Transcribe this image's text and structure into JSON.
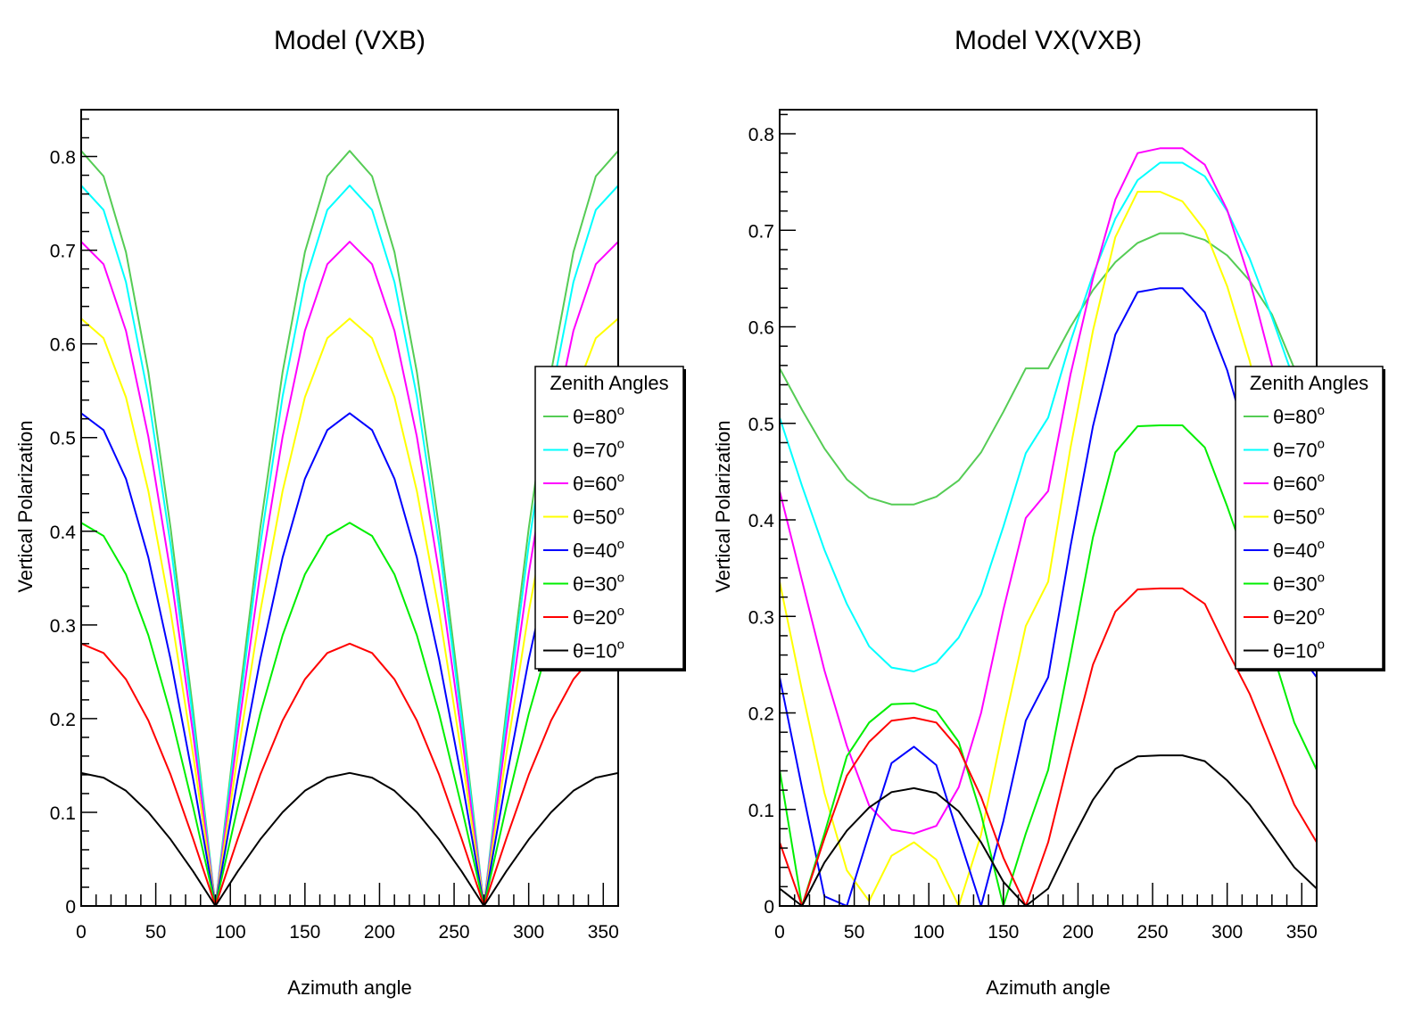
{
  "chart_data": [
    {
      "type": "line",
      "title": "Model (VXB)",
      "xlabel": "Azimuth angle",
      "ylabel": "Vertical Polarization",
      "xlim": [
        0,
        360
      ],
      "ylim": [
        0,
        0.85
      ],
      "xticks": [
        "0",
        "50",
        "100",
        "150",
        "200",
        "250",
        "300",
        "350"
      ],
      "yticks": [
        "0",
        "0.1",
        "0.2",
        "0.3",
        "0.4",
        "0.5",
        "0.6",
        "0.7",
        "0.8"
      ],
      "legend_position": "right",
      "legend_title": "Zenith Angles",
      "x": [
        0,
        15,
        30,
        45,
        60,
        75,
        90,
        105,
        120,
        135,
        150,
        165,
        180,
        195,
        210,
        225,
        240,
        255,
        270,
        285,
        300,
        315,
        330,
        345,
        360
      ],
      "series": [
        {
          "name": "θ=80",
          "color": "#55cc55",
          "values": [
            0.806,
            0.779,
            0.698,
            0.57,
            0.403,
            0.209,
            0.0,
            0.209,
            0.403,
            0.57,
            0.698,
            0.779,
            0.806,
            0.779,
            0.698,
            0.57,
            0.403,
            0.209,
            0.0,
            0.209,
            0.403,
            0.57,
            0.698,
            0.779,
            0.806
          ]
        },
        {
          "name": "θ=70",
          "color": "#00ffff",
          "values": [
            0.769,
            0.743,
            0.666,
            0.544,
            0.385,
            0.199,
            0.0,
            0.199,
            0.385,
            0.544,
            0.666,
            0.743,
            0.769,
            0.743,
            0.666,
            0.544,
            0.385,
            0.199,
            0.0,
            0.199,
            0.385,
            0.544,
            0.666,
            0.743,
            0.769
          ]
        },
        {
          "name": "θ=60",
          "color": "#ff00ff",
          "values": [
            0.709,
            0.685,
            0.614,
            0.501,
            0.355,
            0.184,
            0.0,
            0.184,
            0.355,
            0.501,
            0.614,
            0.685,
            0.709,
            0.685,
            0.614,
            0.501,
            0.355,
            0.184,
            0.0,
            0.184,
            0.355,
            0.501,
            0.614,
            0.685,
            0.709
          ]
        },
        {
          "name": "θ=50",
          "color": "#ffff00",
          "values": [
            0.627,
            0.606,
            0.543,
            0.443,
            0.314,
            0.162,
            0.0,
            0.162,
            0.314,
            0.443,
            0.543,
            0.606,
            0.627,
            0.606,
            0.543,
            0.443,
            0.314,
            0.162,
            0.0,
            0.162,
            0.314,
            0.443,
            0.543,
            0.606,
            0.627
          ]
        },
        {
          "name": "θ=40",
          "color": "#0000ff",
          "values": [
            0.526,
            0.508,
            0.456,
            0.372,
            0.263,
            0.136,
            0.0,
            0.136,
            0.263,
            0.372,
            0.456,
            0.508,
            0.526,
            0.508,
            0.456,
            0.372,
            0.263,
            0.136,
            0.0,
            0.136,
            0.263,
            0.372,
            0.456,
            0.508,
            0.526
          ]
        },
        {
          "name": "θ=30",
          "color": "#00ee00",
          "values": [
            0.409,
            0.395,
            0.354,
            0.289,
            0.205,
            0.106,
            0.0,
            0.106,
            0.205,
            0.289,
            0.354,
            0.395,
            0.409,
            0.395,
            0.354,
            0.289,
            0.205,
            0.106,
            0.0,
            0.106,
            0.205,
            0.289,
            0.354,
            0.395,
            0.409
          ]
        },
        {
          "name": "θ=20",
          "color": "#ff0000",
          "values": [
            0.28,
            0.27,
            0.242,
            0.198,
            0.14,
            0.072,
            0.0,
            0.072,
            0.14,
            0.198,
            0.242,
            0.27,
            0.28,
            0.27,
            0.242,
            0.198,
            0.14,
            0.072,
            0.0,
            0.072,
            0.14,
            0.198,
            0.242,
            0.27,
            0.28
          ]
        },
        {
          "name": "θ=10",
          "color": "#000000",
          "values": [
            0.142,
            0.137,
            0.123,
            0.1,
            0.071,
            0.037,
            0.0,
            0.037,
            0.071,
            0.1,
            0.123,
            0.137,
            0.142,
            0.137,
            0.123,
            0.1,
            0.071,
            0.037,
            0.0,
            0.037,
            0.071,
            0.1,
            0.123,
            0.137,
            0.142
          ]
        }
      ]
    },
    {
      "type": "line",
      "title": "Model VX(VXB)",
      "xlabel": "Azimuth angle",
      "ylabel": "Vertical Polarization",
      "xlim": [
        0,
        360
      ],
      "ylim": [
        0,
        0.825
      ],
      "xticks": [
        "0",
        "50",
        "100",
        "150",
        "200",
        "250",
        "300",
        "350"
      ],
      "yticks": [
        "0",
        "0.1",
        "0.2",
        "0.3",
        "0.4",
        "0.5",
        "0.6",
        "0.7",
        "0.8"
      ],
      "legend_position": "right",
      "legend_title": "Zenith Angles",
      "x": [
        0,
        15,
        30,
        45,
        60,
        75,
        90,
        105,
        120,
        135,
        150,
        165,
        180,
        195,
        210,
        225,
        240,
        255,
        270,
        285,
        300,
        315,
        330,
        345,
        360
      ],
      "series": [
        {
          "name": "θ=80",
          "color": "#55cc55",
          "values": [
            0.557,
            0.514,
            0.474,
            0.442,
            0.423,
            0.416,
            0.416,
            0.424,
            0.441,
            0.47,
            0.512,
            0.557,
            0.557,
            0.6,
            0.638,
            0.667,
            0.687,
            0.697,
            0.697,
            0.69,
            0.674,
            0.648,
            0.613,
            0.557,
            0.557
          ]
        },
        {
          "name": "θ=70",
          "color": "#00ffff",
          "values": [
            0.506,
            0.435,
            0.369,
            0.313,
            0.269,
            0.247,
            0.243,
            0.252,
            0.278,
            0.323,
            0.393,
            0.469,
            0.506,
            0.585,
            0.654,
            0.712,
            0.752,
            0.77,
            0.77,
            0.756,
            0.72,
            0.671,
            0.61,
            0.544,
            0.506
          ]
        },
        {
          "name": "θ=60",
          "color": "#ff00ff",
          "values": [
            0.43,
            0.337,
            0.244,
            0.166,
            0.104,
            0.079,
            0.075,
            0.083,
            0.123,
            0.2,
            0.307,
            0.402,
            0.43,
            0.551,
            0.65,
            0.732,
            0.78,
            0.785,
            0.785,
            0.768,
            0.721,
            0.649,
            0.56,
            0.474,
            0.43
          ]
        },
        {
          "name": "θ=50",
          "color": "#ffff00",
          "values": [
            0.336,
            0.223,
            0.117,
            0.037,
            0.005,
            0.052,
            0.066,
            0.048,
            0.0,
            0.074,
            0.185,
            0.29,
            0.336,
            0.475,
            0.596,
            0.693,
            0.74,
            0.74,
            0.73,
            0.7,
            0.642,
            0.565,
            0.466,
            0.39,
            0.336
          ]
        },
        {
          "name": "θ=40",
          "color": "#0000ff",
          "values": [
            0.237,
            0.122,
            0.01,
            0.0,
            0.075,
            0.148,
            0.165,
            0.146,
            0.072,
            0.0,
            0.088,
            0.192,
            0.237,
            0.373,
            0.497,
            0.592,
            0.636,
            0.64,
            0.64,
            0.615,
            0.555,
            0.473,
            0.368,
            0.268,
            0.237
          ]
        },
        {
          "name": "θ=30",
          "color": "#00ee00",
          "values": [
            0.141,
            0.0,
            0.075,
            0.155,
            0.19,
            0.209,
            0.21,
            0.202,
            0.17,
            0.095,
            0.0,
            0.075,
            0.141,
            0.26,
            0.382,
            0.47,
            0.497,
            0.498,
            0.498,
            0.475,
            0.414,
            0.348,
            0.265,
            0.19,
            0.141
          ]
        },
        {
          "name": "θ=20",
          "color": "#ff0000",
          "values": [
            0.066,
            0.0,
            0.07,
            0.135,
            0.17,
            0.192,
            0.195,
            0.19,
            0.163,
            0.113,
            0.05,
            0.0,
            0.066,
            0.16,
            0.25,
            0.305,
            0.328,
            0.329,
            0.329,
            0.313,
            0.265,
            0.22,
            0.163,
            0.105,
            0.066
          ]
        },
        {
          "name": "θ=10",
          "color": "#000000",
          "values": [
            0.018,
            0.0,
            0.045,
            0.078,
            0.102,
            0.118,
            0.122,
            0.117,
            0.098,
            0.066,
            0.025,
            0.0,
            0.018,
            0.066,
            0.11,
            0.142,
            0.155,
            0.156,
            0.156,
            0.15,
            0.13,
            0.105,
            0.073,
            0.04,
            0.018
          ]
        }
      ]
    }
  ]
}
